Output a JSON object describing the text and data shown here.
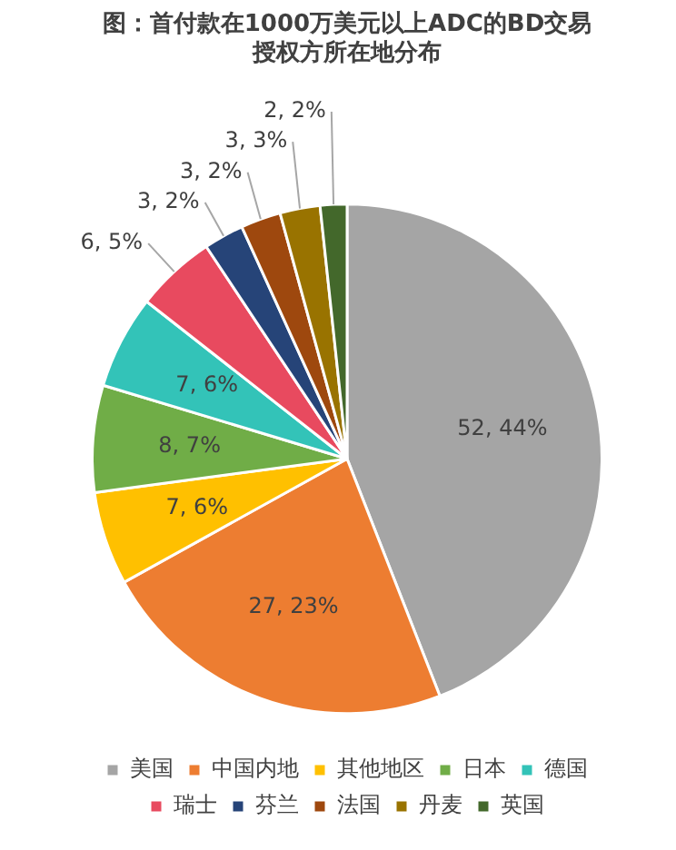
{
  "chart_data": {
    "type": "pie",
    "title": "图：首付款在1000万美元以上ADC的BD交易授权方所在地分布",
    "categories": [
      "美国",
      "中国内地",
      "其他地区",
      "日本",
      "德国",
      "瑞士",
      "芬兰",
      "法国",
      "丹麦",
      "英国"
    ],
    "values": [
      52,
      27,
      7,
      8,
      7,
      6,
      3,
      3,
      3,
      2
    ],
    "value_labels": [
      "52, 44%",
      "27, 23%",
      "7, 6%",
      "8, 7%",
      "7, 6%",
      "6, 5%",
      "3, 2%",
      "3, 2%",
      "3, 3%",
      "2, 2%"
    ],
    "colors": [
      "#a5a5a5",
      "#ed7d31",
      "#ffc000",
      "#70ad47",
      "#33c3b8",
      "#e84a5f",
      "#264478",
      "#9e480e",
      "#997300",
      "#43682b"
    ],
    "legend": "bottom"
  }
}
